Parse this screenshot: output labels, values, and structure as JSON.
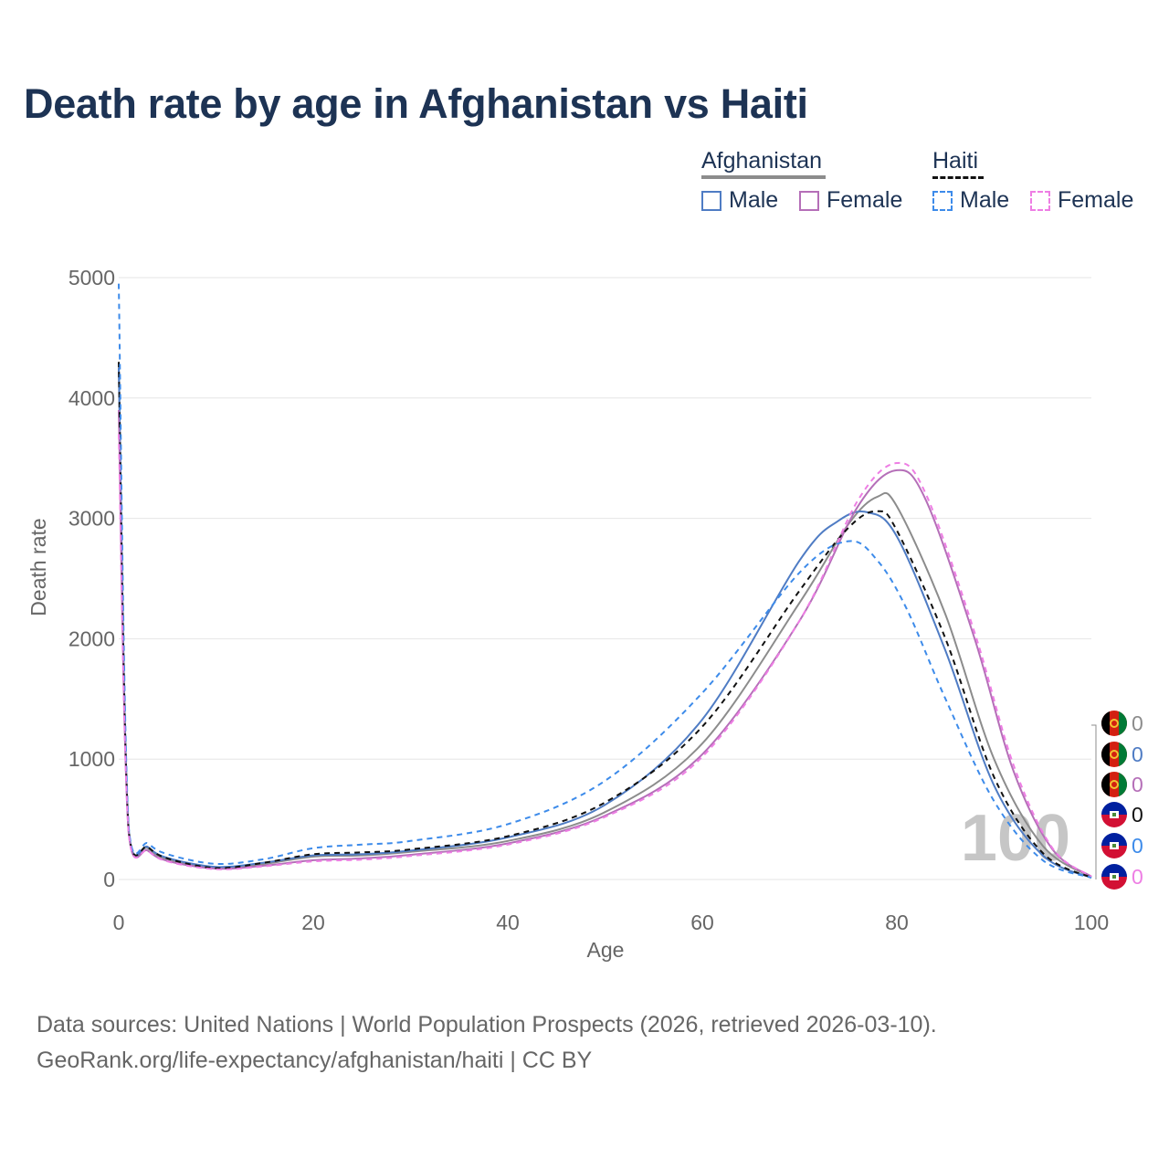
{
  "title": "Death rate by age in Afghanistan vs Haiti",
  "legend": {
    "groups": [
      {
        "name": "Afghanistan",
        "items": [
          {
            "label": "Male"
          },
          {
            "label": "Female"
          }
        ]
      },
      {
        "name": "Haiti",
        "items": [
          {
            "label": "Male"
          },
          {
            "label": "Female"
          }
        ]
      }
    ]
  },
  "footer": {
    "source": "Data sources: United Nations | World Population Prospects (2026, retrieved 2026-03-10).",
    "credit": "GeoRank.org/life-expectancy/afghanistan/haiti | CC BY"
  },
  "overlay_age": "100",
  "chart_data": {
    "type": "line",
    "xlabel": "Age",
    "ylabel": "Death rate",
    "xlim": [
      0,
      100
    ],
    "ylim": [
      0,
      5000
    ],
    "xticks": [
      0,
      20,
      40,
      60,
      80,
      100
    ],
    "yticks": [
      0,
      1000,
      2000,
      3000,
      4000,
      5000
    ],
    "grid": true,
    "series": [
      {
        "name": "Afghanistan (total)",
        "color": "#8c8c8c",
        "dash": "solid",
        "end_label": "0",
        "points": [
          [
            0,
            4300
          ],
          [
            1,
            420
          ],
          [
            3,
            260
          ],
          [
            5,
            170
          ],
          [
            10,
            100
          ],
          [
            15,
            130
          ],
          [
            20,
            190
          ],
          [
            25,
            200
          ],
          [
            30,
            230
          ],
          [
            40,
            320
          ],
          [
            50,
            560
          ],
          [
            60,
            1130
          ],
          [
            70,
            2300
          ],
          [
            75,
            2950
          ],
          [
            78,
            3180
          ],
          [
            80,
            3100
          ],
          [
            85,
            2200
          ],
          [
            90,
            1000
          ],
          [
            95,
            280
          ],
          [
            100,
            20
          ]
        ]
      },
      {
        "name": "Afghanistan Male",
        "color": "#4f7cc4",
        "dash": "solid",
        "end_label": "0",
        "points": [
          [
            0,
            4250
          ],
          [
            1,
            430
          ],
          [
            3,
            270
          ],
          [
            5,
            180
          ],
          [
            10,
            105
          ],
          [
            15,
            140
          ],
          [
            20,
            200
          ],
          [
            25,
            210
          ],
          [
            30,
            240
          ],
          [
            40,
            350
          ],
          [
            50,
            620
          ],
          [
            60,
            1330
          ],
          [
            70,
            2650
          ],
          [
            74,
            2980
          ],
          [
            77,
            3050
          ],
          [
            80,
            2850
          ],
          [
            85,
            1900
          ],
          [
            90,
            780
          ],
          [
            95,
            200
          ],
          [
            100,
            15
          ]
        ]
      },
      {
        "name": "Afghanistan Female",
        "color": "#b56fb8",
        "dash": "solid",
        "end_label": "0",
        "points": [
          [
            0,
            3900
          ],
          [
            1,
            400
          ],
          [
            3,
            240
          ],
          [
            5,
            155
          ],
          [
            10,
            90
          ],
          [
            15,
            115
          ],
          [
            20,
            160
          ],
          [
            25,
            175
          ],
          [
            30,
            205
          ],
          [
            40,
            300
          ],
          [
            50,
            530
          ],
          [
            60,
            1040
          ],
          [
            70,
            2150
          ],
          [
            76,
            3100
          ],
          [
            80,
            3400
          ],
          [
            83,
            3150
          ],
          [
            88,
            2000
          ],
          [
            92,
            900
          ],
          [
            96,
            250
          ],
          [
            100,
            25
          ]
        ]
      },
      {
        "name": "Haiti (total)",
        "color": "#111111",
        "dash": "6,5",
        "end_label": "0",
        "points": [
          [
            0,
            4300
          ],
          [
            1,
            430
          ],
          [
            3,
            270
          ],
          [
            5,
            175
          ],
          [
            10,
            95
          ],
          [
            15,
            140
          ],
          [
            20,
            210
          ],
          [
            25,
            225
          ],
          [
            30,
            250
          ],
          [
            40,
            360
          ],
          [
            50,
            640
          ],
          [
            60,
            1270
          ],
          [
            70,
            2400
          ],
          [
            75,
            2920
          ],
          [
            78,
            3060
          ],
          [
            80,
            2900
          ],
          [
            85,
            2000
          ],
          [
            90,
            850
          ],
          [
            95,
            220
          ],
          [
            100,
            15
          ]
        ]
      },
      {
        "name": "Haiti Male",
        "color": "#3d8bea",
        "dash": "6,5",
        "end_label": "0",
        "points": [
          [
            0,
            4950
          ],
          [
            1,
            450
          ],
          [
            3,
            300
          ],
          [
            5,
            210
          ],
          [
            10,
            130
          ],
          [
            15,
            170
          ],
          [
            20,
            260
          ],
          [
            25,
            290
          ],
          [
            30,
            320
          ],
          [
            40,
            460
          ],
          [
            50,
            820
          ],
          [
            60,
            1550
          ],
          [
            70,
            2550
          ],
          [
            75,
            2810
          ],
          [
            78,
            2650
          ],
          [
            81,
            2250
          ],
          [
            85,
            1500
          ],
          [
            90,
            650
          ],
          [
            95,
            160
          ],
          [
            100,
            15
          ]
        ]
      },
      {
        "name": "Haiti Female",
        "color": "#ee7ee4",
        "dash": "6,5",
        "end_label": "0",
        "points": [
          [
            0,
            3700
          ],
          [
            1,
            400
          ],
          [
            3,
            240
          ],
          [
            5,
            150
          ],
          [
            10,
            85
          ],
          [
            15,
            110
          ],
          [
            20,
            150
          ],
          [
            25,
            165
          ],
          [
            30,
            195
          ],
          [
            40,
            290
          ],
          [
            50,
            520
          ],
          [
            60,
            1020
          ],
          [
            70,
            2150
          ],
          [
            76,
            3150
          ],
          [
            80,
            3460
          ],
          [
            83,
            3200
          ],
          [
            88,
            2050
          ],
          [
            92,
            950
          ],
          [
            96,
            260
          ],
          [
            100,
            25
          ]
        ]
      }
    ]
  }
}
